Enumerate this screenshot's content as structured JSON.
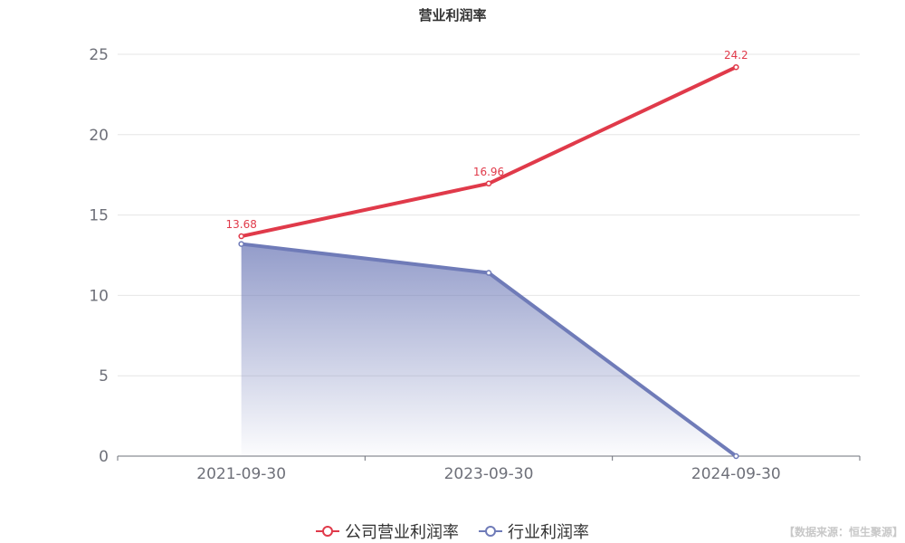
{
  "chart_data": {
    "type": "line",
    "title": "营业利润率",
    "categories": [
      "2021-09-30",
      "2023-09-30",
      "2024-09-30"
    ],
    "ylim": [
      0,
      25
    ],
    "yticks": [
      0,
      5,
      10,
      15,
      20,
      25
    ],
    "grid": true,
    "legend_position": "bottom-center",
    "series": [
      {
        "name": "公司营业利润率",
        "values": [
          13.68,
          16.96,
          24.2
        ],
        "color": "#e03a4a",
        "labels": [
          "13.68",
          "16.96",
          "24.2"
        ],
        "area": false
      },
      {
        "name": "行业利润率",
        "values": [
          13.2,
          11.4,
          0
        ],
        "color": "#6f7bb8",
        "area": true
      }
    ]
  },
  "source_note": "【数据来源：恒生聚源】"
}
